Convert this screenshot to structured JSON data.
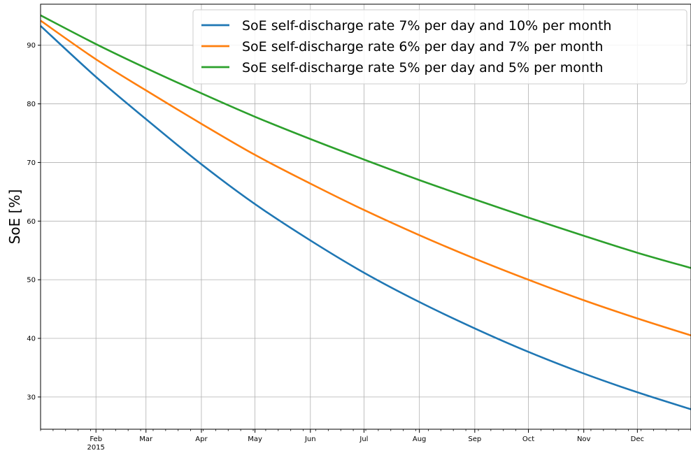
{
  "chart_data": {
    "type": "line",
    "title": "",
    "xlabel": "",
    "ylabel": "SoE [%]",
    "x_axis_type": "date",
    "xlim": [
      "2015-01-01",
      "2015-12-31"
    ],
    "ylim": [
      24.5,
      97
    ],
    "yticks": [
      30,
      40,
      50,
      60,
      70,
      80,
      90
    ],
    "xticks": [
      {
        "date": "2015-02-01",
        "label": "Feb",
        "sublabel": "2015"
      },
      {
        "date": "2015-03-01",
        "label": "Mar",
        "sublabel": ""
      },
      {
        "date": "2015-04-01",
        "label": "Apr",
        "sublabel": ""
      },
      {
        "date": "2015-05-01",
        "label": "May",
        "sublabel": ""
      },
      {
        "date": "2015-06-01",
        "label": "Jun",
        "sublabel": ""
      },
      {
        "date": "2015-07-01",
        "label": "Jul",
        "sublabel": ""
      },
      {
        "date": "2015-08-01",
        "label": "Aug",
        "sublabel": ""
      },
      {
        "date": "2015-09-01",
        "label": "Sep",
        "sublabel": ""
      },
      {
        "date": "2015-10-01",
        "label": "Oct",
        "sublabel": ""
      },
      {
        "date": "2015-11-01",
        "label": "Nov",
        "sublabel": ""
      },
      {
        "date": "2015-12-01",
        "label": "Dec",
        "sublabel": ""
      }
    ],
    "grid": true,
    "legend_position": "top-right",
    "series": [
      {
        "name": "SoE self-discharge rate 7% per day and 10% per month",
        "color": "#1f77b4",
        "points": [
          [
            "2015-01-01",
            93.3
          ],
          [
            "2015-02-01",
            84.6
          ],
          [
            "2015-03-01",
            77.4
          ],
          [
            "2015-04-01",
            69.7
          ],
          [
            "2015-05-01",
            62.9
          ],
          [
            "2015-06-01",
            56.7
          ],
          [
            "2015-07-01",
            51.2
          ],
          [
            "2015-08-01",
            46.2
          ],
          [
            "2015-09-01",
            41.7
          ],
          [
            "2015-10-01",
            37.7
          ],
          [
            "2015-11-01",
            34.0
          ],
          [
            "2015-12-01",
            30.8
          ],
          [
            "2015-12-31",
            27.9
          ]
        ]
      },
      {
        "name": "SoE self-discharge rate 6% per day and 7% per month",
        "color": "#ff7f0e",
        "points": [
          [
            "2015-01-01",
            94.2
          ],
          [
            "2015-02-01",
            87.6
          ],
          [
            "2015-03-01",
            82.3
          ],
          [
            "2015-04-01",
            76.6
          ],
          [
            "2015-05-01",
            71.3
          ],
          [
            "2015-06-01",
            66.4
          ],
          [
            "2015-07-01",
            61.9
          ],
          [
            "2015-08-01",
            57.6
          ],
          [
            "2015-09-01",
            53.6
          ],
          [
            "2015-10-01",
            50.0
          ],
          [
            "2015-11-01",
            46.5
          ],
          [
            "2015-12-01",
            43.4
          ],
          [
            "2015-12-31",
            40.5
          ]
        ]
      },
      {
        "name": "SoE self-discharge rate 5% per day and 5% per month",
        "color": "#2ca02c",
        "points": [
          [
            "2015-01-01",
            95.1
          ],
          [
            "2015-02-01",
            90.2
          ],
          [
            "2015-03-01",
            86.1
          ],
          [
            "2015-04-01",
            81.8
          ],
          [
            "2015-05-01",
            77.8
          ],
          [
            "2015-06-01",
            74.0
          ],
          [
            "2015-07-01",
            70.5
          ],
          [
            "2015-08-01",
            67.0
          ],
          [
            "2015-09-01",
            63.7
          ],
          [
            "2015-10-01",
            60.6
          ],
          [
            "2015-11-01",
            57.5
          ],
          [
            "2015-12-01",
            54.6
          ],
          [
            "2015-12-31",
            52.0
          ]
        ]
      }
    ]
  }
}
